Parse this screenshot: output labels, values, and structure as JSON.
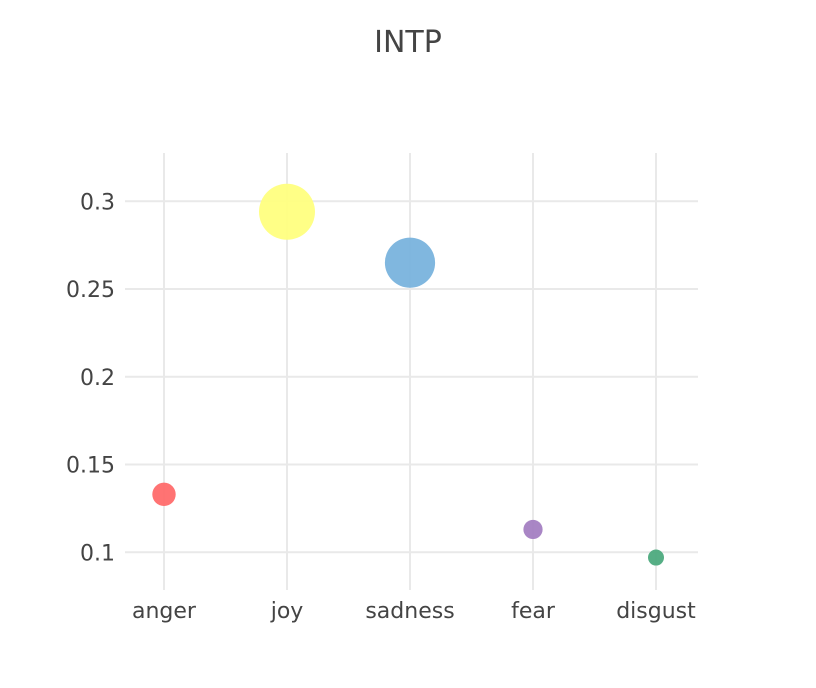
{
  "chart_data": {
    "type": "scatter",
    "title": "INTP",
    "xlabel": "",
    "ylabel": "",
    "categories": [
      "anger",
      "joy",
      "sadness",
      "fear",
      "disgust"
    ],
    "values": [
      0.133,
      0.294,
      0.265,
      0.113,
      0.097
    ],
    "marker_colors": [
      "#ff6b6b",
      "#ffff80",
      "#79b3dd",
      "#a47fc2",
      "#4daa7e"
    ],
    "ylim": [
      0.0785,
      0.3275
    ],
    "yticks": [
      0.1,
      0.15,
      0.2,
      0.25,
      0.3
    ],
    "ytick_labels": [
      "0.1",
      "0.15",
      "0.2",
      "0.25",
      "0.3"
    ],
    "grid": true,
    "legend": "none",
    "note": "Marker size scales with value"
  }
}
